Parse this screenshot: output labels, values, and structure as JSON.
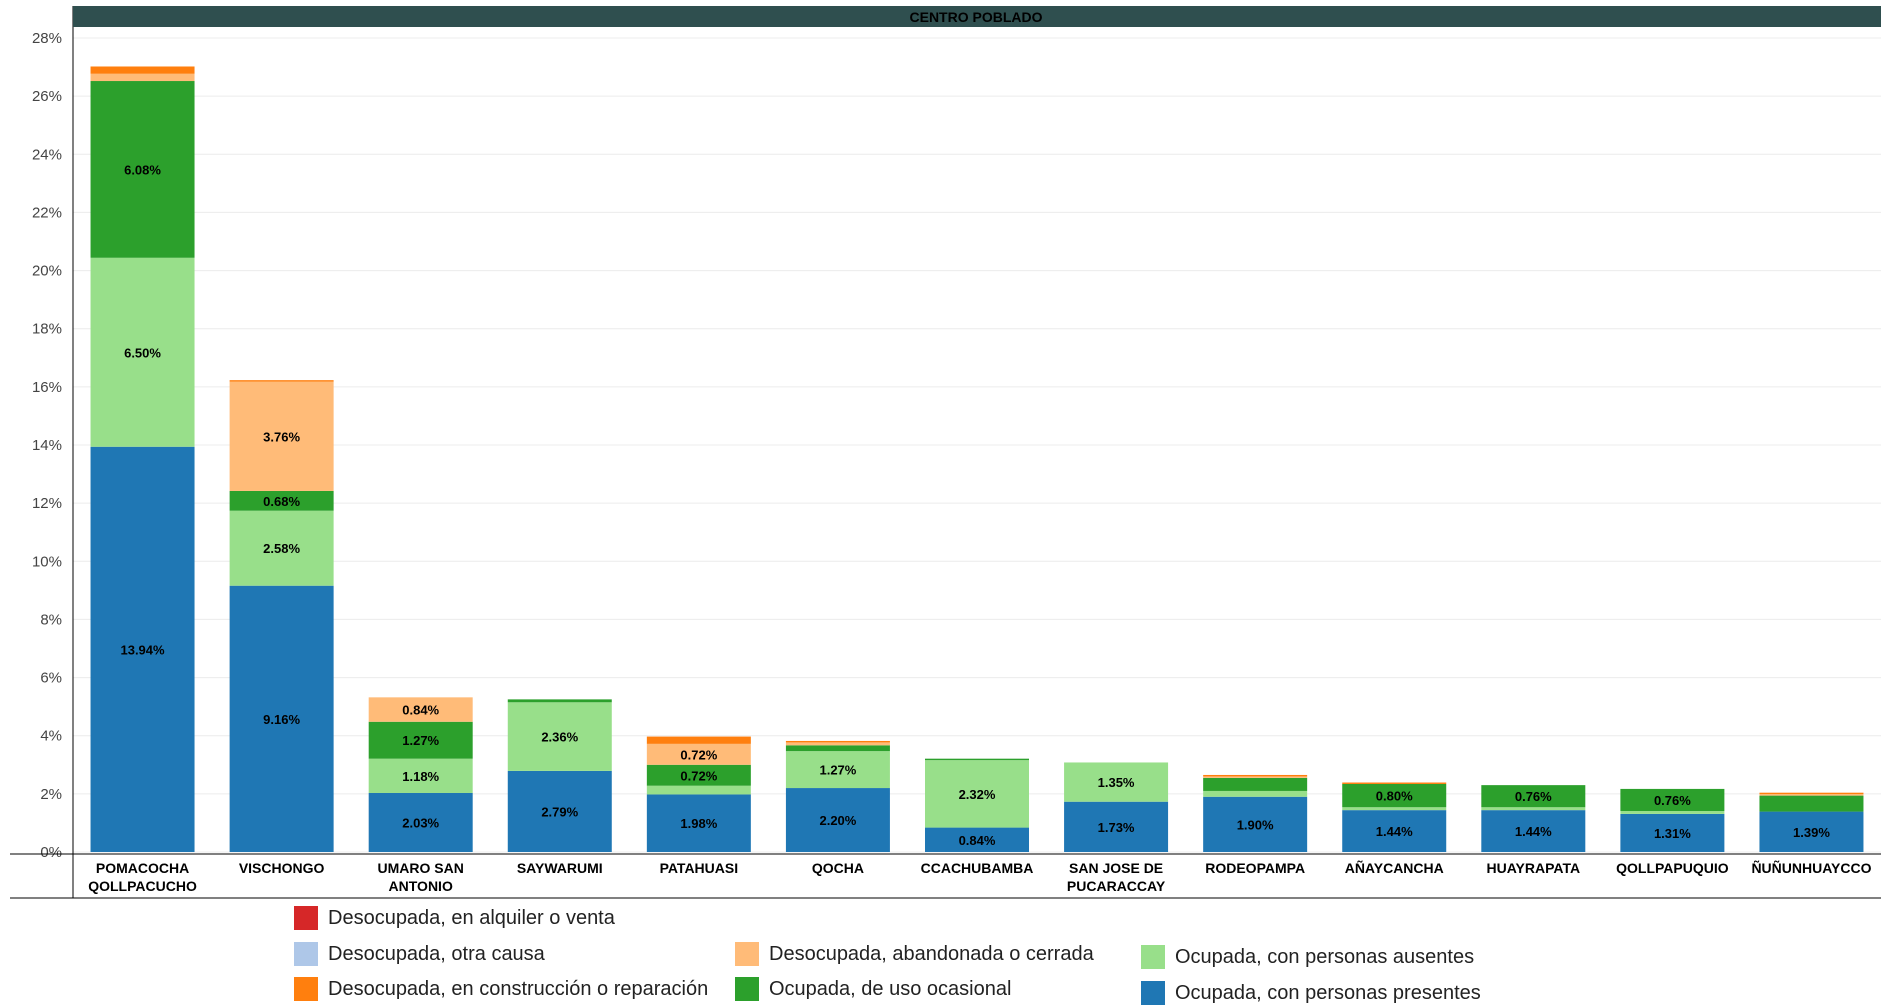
{
  "chart_data": {
    "type": "bar",
    "stacked": true,
    "header": "CENTRO POBLADO",
    "categories": [
      "POMACOCHA QOLLPACUCHO",
      "VISCHONGO",
      "UMARO SAN ANTONIO",
      "SAYWARUMI",
      "PATAHUASI",
      "QOCHA",
      "CCACHUBAMBA",
      "SAN JOSE DE PUCARACCAY",
      "RODEOPAMPA",
      "AÑAYCANCHA",
      "HUAYRAPATA",
      "QOLLPAPUQUIO",
      "ÑUÑUNHUAYCCO"
    ],
    "category_lines": [
      [
        "POMACOCHA",
        "QOLLPACUCHO"
      ],
      [
        "VISCHONGO"
      ],
      [
        "UMARO SAN",
        "ANTONIO"
      ],
      [
        "SAYWARUMI"
      ],
      [
        "PATAHUASI"
      ],
      [
        "QOCHA"
      ],
      [
        "CCACHUBAMBA"
      ],
      [
        "SAN JOSE DE",
        "PUCARACCAY"
      ],
      [
        "RODEOPAMPA"
      ],
      [
        "AÑAYCANCHA"
      ],
      [
        "HUAYRAPATA"
      ],
      [
        "QOLLPAPUQUIO"
      ],
      [
        "ÑUÑUNHUAYCCO"
      ]
    ],
    "series": [
      {
        "name": "Ocupada, con personas presentes",
        "color": "#1f77b4",
        "values": [
          13.94,
          9.16,
          2.03,
          2.79,
          1.98,
          2.2,
          0.84,
          1.73,
          1.9,
          1.44,
          1.44,
          1.31,
          1.39
        ],
        "labels": [
          "13.94%",
          "9.16%",
          "2.03%",
          "2.79%",
          "1.98%",
          "2.20%",
          "0.84%",
          "1.73%",
          "1.90%",
          "1.44%",
          "1.44%",
          "1.31%",
          "1.39%"
        ]
      },
      {
        "name": "Ocupada, con personas ausentes",
        "color": "#98df8a",
        "values": [
          6.5,
          2.58,
          1.18,
          2.36,
          0.3,
          1.27,
          2.32,
          1.35,
          0.2,
          0.1,
          0.1,
          0.1,
          0.0
        ],
        "labels": [
          "6.50%",
          "2.58%",
          "1.18%",
          "2.36%",
          "",
          "1.27%",
          "2.32%",
          "1.35%",
          "",
          "",
          "",
          "",
          ""
        ]
      },
      {
        "name": "Ocupada, de uso ocasional",
        "color": "#2ca02c",
        "values": [
          6.08,
          0.68,
          1.27,
          0.1,
          0.72,
          0.2,
          0.05,
          0.0,
          0.45,
          0.8,
          0.76,
          0.76,
          0.55
        ],
        "labels": [
          "6.08%",
          "0.68%",
          "1.27%",
          "",
          "0.72%",
          "",
          "",
          "",
          "",
          "0.80%",
          "0.76%",
          "0.76%",
          ""
        ]
      },
      {
        "name": "Desocupada, abandonada o cerrada",
        "color": "#ffbb78",
        "values": [
          0.25,
          3.76,
          0.84,
          0.0,
          0.72,
          0.1,
          0.0,
          0.0,
          0.05,
          0.0,
          0.0,
          0.0,
          0.05
        ],
        "labels": [
          "",
          "3.76%",
          "0.84%",
          "",
          "0.72%",
          "",
          "",
          "",
          "",
          "",
          "",
          "",
          ""
        ]
      },
      {
        "name": "Desocupada, en construcción o reparación",
        "color": "#ff7f0e",
        "values": [
          0.25,
          0.05,
          0.0,
          0.0,
          0.25,
          0.05,
          0.0,
          0.0,
          0.05,
          0.05,
          0.0,
          0.0,
          0.05
        ],
        "labels": [
          "",
          "",
          "",
          "",
          "",
          "",
          "",
          "",
          "",
          "",
          "",
          "",
          ""
        ]
      },
      {
        "name": "Desocupada, otra causa",
        "color": "#aec7e8",
        "values": [
          0,
          0,
          0,
          0,
          0,
          0,
          0,
          0,
          0,
          0,
          0,
          0,
          0
        ],
        "labels": [
          "",
          "",
          "",
          "",
          "",
          "",
          "",
          "",
          "",
          "",
          "",
          "",
          ""
        ]
      },
      {
        "name": "Desocupada, en alquiler o venta",
        "color": "#d62728",
        "values": [
          0,
          0,
          0,
          0,
          0,
          0,
          0,
          0,
          0,
          0,
          0,
          0,
          0
        ],
        "labels": [
          "",
          "",
          "",
          "",
          "",
          "",
          "",
          "",
          "",
          "",
          "",
          "",
          ""
        ]
      }
    ],
    "yticks": [
      "0%",
      "2%",
      "4%",
      "6%",
      "8%",
      "10%",
      "12%",
      "14%",
      "16%",
      "18%",
      "20%",
      "22%",
      "24%",
      "26%",
      "28%"
    ],
    "ylim": [
      0,
      28
    ],
    "grid": true,
    "legend_position": "bottom"
  },
  "legend": {
    "items": [
      {
        "label": "Desocupada, en alquiler o venta",
        "color": "#d62728"
      },
      {
        "label": "Desocupada, otra causa",
        "color": "#aec7e8"
      },
      {
        "label": "Desocupada, en construcción o reparación",
        "color": "#ff7f0e"
      },
      {
        "label": "Desocupada, abandonada o cerrada",
        "color": "#ffbb78"
      },
      {
        "label": "Ocupada, de uso ocasional",
        "color": "#2ca02c"
      },
      {
        "label": "Ocupada, con personas ausentes",
        "color": "#98df8a"
      },
      {
        "label": "Ocupada, con personas presentes",
        "color": "#1f77b4"
      }
    ]
  }
}
